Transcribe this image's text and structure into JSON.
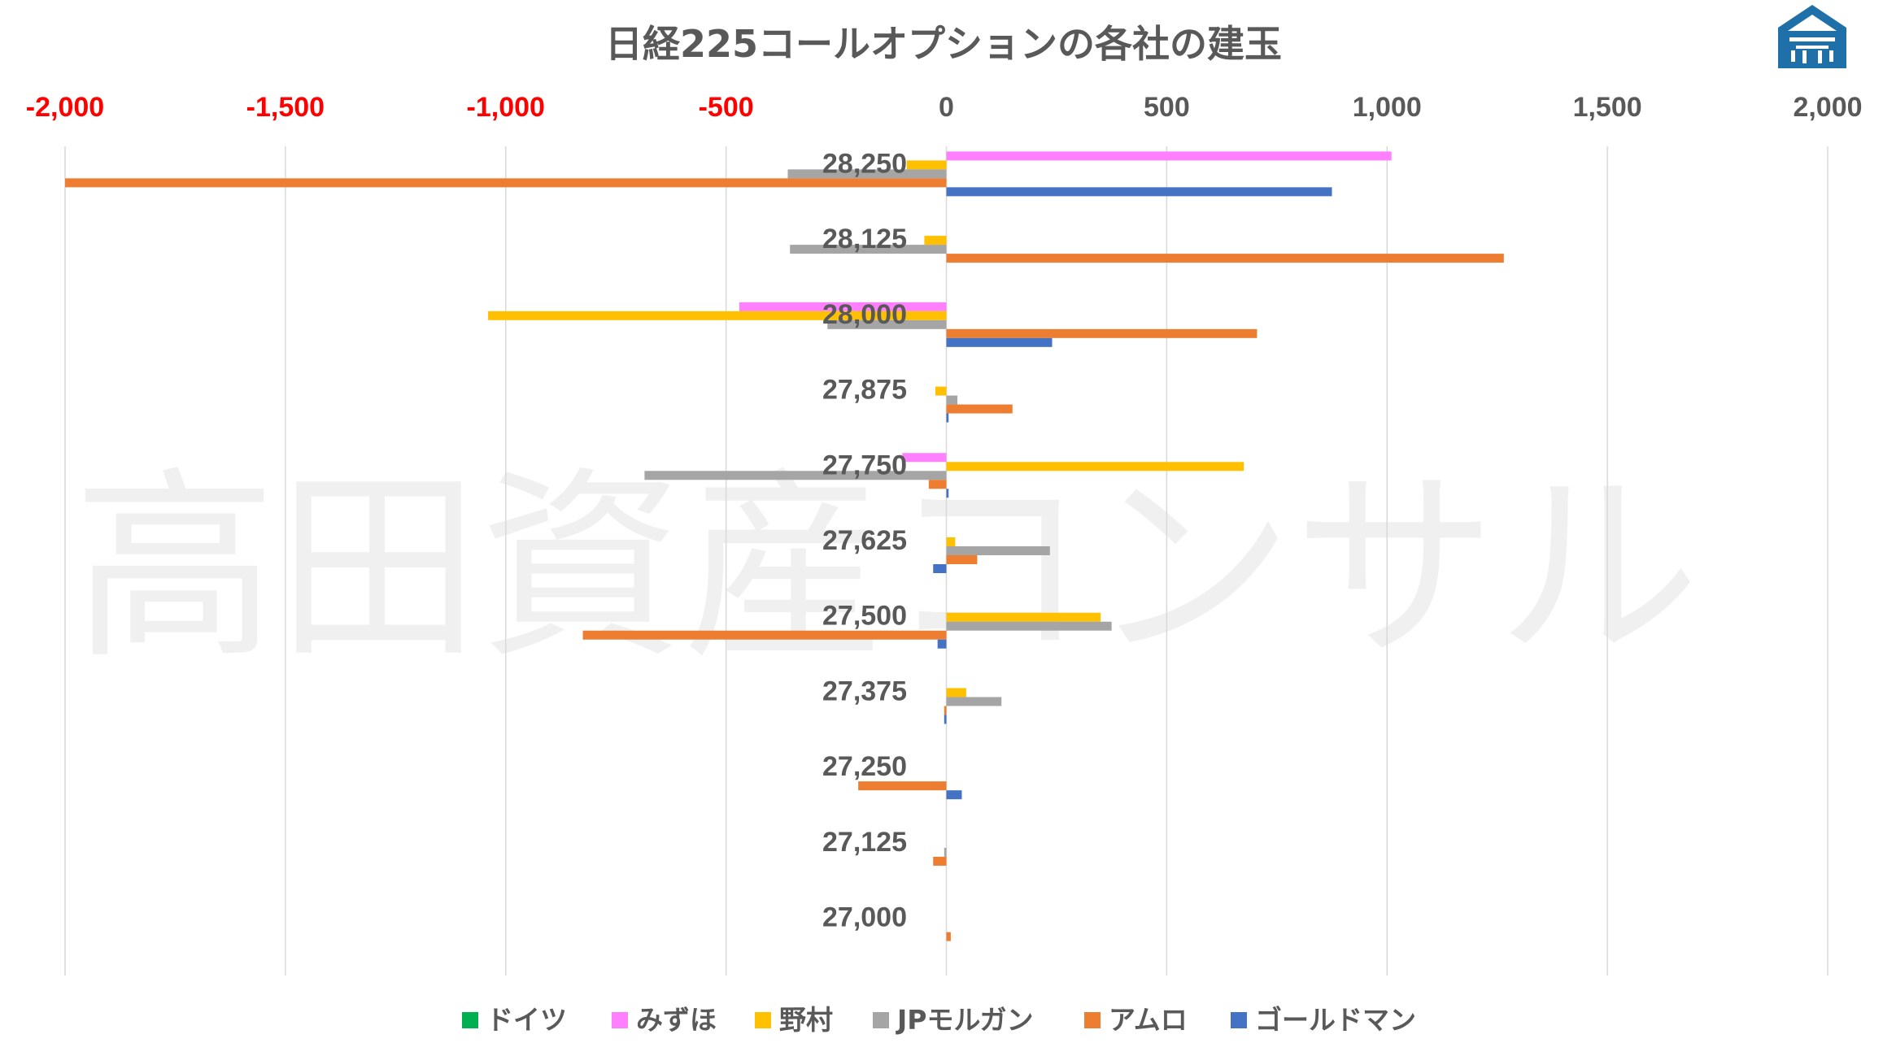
{
  "chart_data": {
    "type": "bar",
    "orientation": "horizontal",
    "title": "日経225コールオプションの各社の建玉",
    "watermark": "高田資産コンサル",
    "xlim": [
      -2000,
      2000
    ],
    "xticks": [
      -2000,
      -1500,
      -1000,
      -500,
      0,
      500,
      1000,
      1500,
      2000
    ],
    "xtick_labels": [
      "-2,000",
      "-1,500",
      "-1,000",
      "-500",
      "0",
      "500",
      "1,000",
      "1,500",
      "2,000"
    ],
    "negative_tick_color": "#ff0000",
    "positive_tick_color": "#595959",
    "grid": true,
    "legend_position": "bottom",
    "categories": [
      "28,250",
      "28,125",
      "28,000",
      "27,875",
      "27,750",
      "27,625",
      "27,500",
      "27,375",
      "27,250",
      "27,125",
      "27,000"
    ],
    "series": [
      {
        "name": "ドイツ",
        "color": "#00b050",
        "values": [
          0,
          0,
          0,
          0,
          0,
          0,
          0,
          0,
          0,
          0,
          0
        ]
      },
      {
        "name": "みずほ",
        "color": "#ff80ff",
        "values": [
          1010,
          0,
          -470,
          0,
          -100,
          0,
          0,
          0,
          0,
          0,
          0
        ]
      },
      {
        "name": "野村",
        "color": "#ffc000",
        "values": [
          -90,
          -50,
          -1040,
          -25,
          675,
          20,
          350,
          45,
          0,
          0,
          0
        ]
      },
      {
        "name": "JPモルガン",
        "color": "#a5a5a5",
        "values": [
          -360,
          -355,
          -270,
          25,
          -685,
          235,
          375,
          125,
          0,
          -5,
          0
        ]
      },
      {
        "name": "アムロ",
        "color": "#ed7d31",
        "values": [
          -2000,
          1265,
          705,
          150,
          -40,
          70,
          -825,
          -5,
          -200,
          -30,
          10
        ]
      },
      {
        "name": "ゴールドマン",
        "color": "#4472c4",
        "values": [
          875,
          0,
          240,
          5,
          5,
          -30,
          -20,
          -5,
          35,
          0,
          0
        ]
      }
    ]
  },
  "logo": {
    "name": "logo-icon",
    "color": "#1f6fa8"
  }
}
